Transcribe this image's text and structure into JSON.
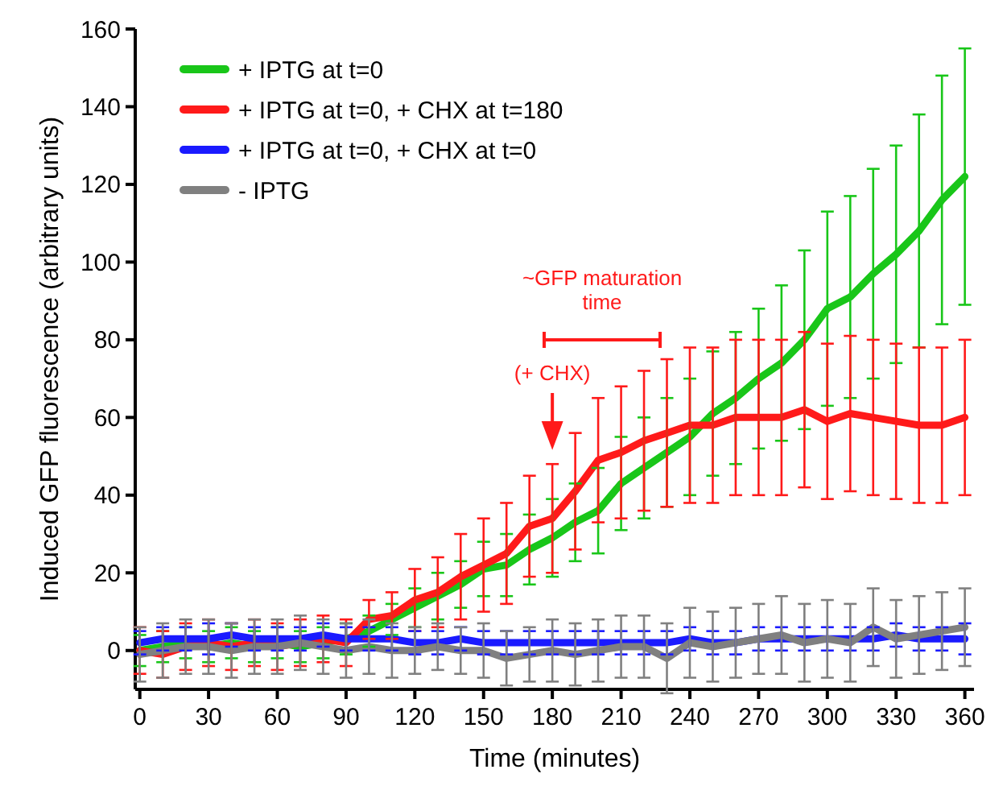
{
  "chart_data": {
    "type": "line",
    "xlabel": "Time (minutes)",
    "ylabel": "Induced GFP fluorescence (arbitrary units)",
    "x": [
      0,
      10,
      20,
      30,
      40,
      50,
      60,
      70,
      80,
      90,
      100,
      110,
      120,
      130,
      140,
      150,
      160,
      170,
      180,
      190,
      200,
      210,
      220,
      230,
      240,
      250,
      260,
      270,
      280,
      290,
      300,
      310,
      320,
      330,
      340,
      350,
      360
    ],
    "xlim": [
      -2,
      364
    ],
    "ylim": [
      -10,
      160
    ],
    "xticks": [
      0,
      30,
      60,
      90,
      120,
      150,
      180,
      210,
      240,
      270,
      300,
      330,
      360
    ],
    "yticks": [
      0,
      20,
      40,
      60,
      80,
      100,
      120,
      140,
      160
    ],
    "legend": "top left",
    "marker": "none",
    "line_style": "solid",
    "grid": false,
    "series": [
      {
        "name": "+ IPTG at t=0",
        "color": "#19c619",
        "values": [
          0,
          1,
          2,
          1,
          2,
          1,
          2,
          1,
          2,
          3,
          5,
          8,
          11,
          14,
          17,
          21,
          22,
          26,
          29,
          33,
          36,
          43,
          47,
          51,
          55,
          61,
          65,
          70,
          74,
          80,
          88,
          91,
          97,
          102,
          108,
          116,
          122
        ],
        "errors": [
          4,
          4,
          4,
          4,
          4,
          4,
          4,
          4,
          4,
          4,
          4,
          4,
          5,
          6,
          6,
          7,
          8,
          9,
          10,
          10,
          11,
          12,
          13,
          14,
          15,
          16,
          17,
          18,
          20,
          23,
          25,
          26,
          27,
          28,
          30,
          32,
          33
        ]
      },
      {
        "name": "+ IPTG at t=0, + CHX at t=180",
        "color": "#ff1a1a",
        "values": [
          0,
          -1,
          1,
          2,
          1,
          2,
          1,
          2,
          3,
          2,
          8,
          9,
          13,
          15,
          19,
          22,
          25,
          32,
          34,
          41,
          49,
          51,
          54,
          56,
          58,
          58,
          60,
          60,
          60,
          62,
          59,
          61,
          60,
          59,
          58,
          58,
          60
        ],
        "errors": [
          6,
          6,
          6,
          6,
          6,
          6,
          6,
          6,
          6,
          6,
          5,
          6,
          8,
          9,
          11,
          12,
          13,
          13,
          14,
          15,
          16,
          17,
          18,
          19,
          20,
          20,
          20,
          20,
          20,
          20,
          20,
          20,
          20,
          20,
          20,
          20,
          20
        ]
      },
      {
        "name": "+ IPTG at t=0, + CHX at t=0",
        "color": "#1a1aff",
        "values": [
          2,
          3,
          3,
          3,
          4,
          3,
          3,
          3,
          4,
          3,
          3,
          3,
          2,
          2,
          3,
          2,
          2,
          2,
          2,
          2,
          2,
          2,
          2,
          2,
          3,
          2,
          2,
          3,
          3,
          3,
          3,
          3,
          3,
          4,
          3,
          3,
          3
        ],
        "errors": [
          3,
          3,
          3,
          4,
          3,
          3,
          3,
          3,
          3,
          3,
          3,
          3,
          3,
          3,
          3,
          3,
          3,
          3,
          3,
          3,
          3,
          3,
          3,
          3,
          3,
          3,
          3,
          3,
          3,
          3,
          3,
          3,
          3,
          3,
          3,
          3,
          4
        ]
      },
      {
        "name": "- IPTG",
        "color": "#808080",
        "values": [
          -1,
          0,
          1,
          1,
          0,
          1,
          1,
          2,
          1,
          0,
          1,
          0,
          0,
          1,
          0,
          0,
          -2,
          -1,
          0,
          -1,
          0,
          1,
          1,
          -2,
          2,
          1,
          2,
          3,
          4,
          2,
          3,
          2,
          6,
          3,
          4,
          5,
          6
        ],
        "errors": [
          7,
          7,
          7,
          7,
          7,
          7,
          7,
          7,
          7,
          7,
          7,
          7,
          6,
          6,
          6,
          7,
          7,
          7,
          8,
          8,
          8,
          8,
          8,
          9,
          9,
          9,
          9,
          9,
          10,
          10,
          10,
          10,
          10,
          10,
          10,
          10,
          10
        ]
      }
    ],
    "annotations": [
      "~GFP maturation time",
      "(+ CHX)"
    ]
  }
}
